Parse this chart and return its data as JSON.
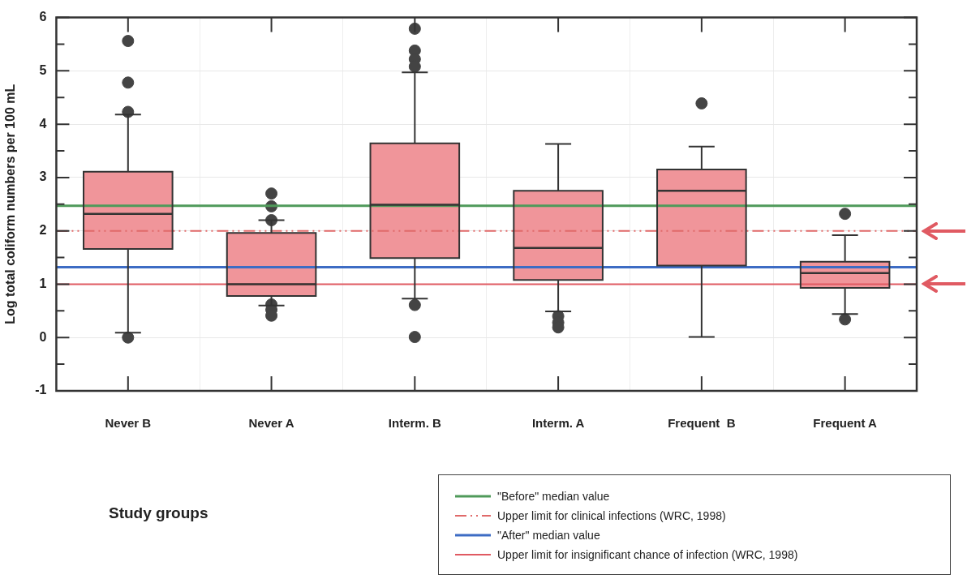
{
  "chart_data": {
    "type": "box",
    "annotations": [
      "Study groups"
    ],
    "ylabel": "Log total coliform numbers per 100 mL",
    "categories": [
      "Never B",
      "Never A",
      "Interm. B",
      "Interm. A",
      "Frequent  B",
      "Frequent A"
    ],
    "color": "#f0959a",
    "boxes": [
      {
        "low": 0.09,
        "q1": 1.66,
        "median": 2.32,
        "q3": 3.11,
        "high": 4.18,
        "outliers": [
          5.56,
          4.78,
          4.23,
          0.0
        ]
      },
      {
        "low": 0.6,
        "q1": 0.78,
        "median": 1.0,
        "q3": 1.96,
        "high": 2.2,
        "outliers": [
          2.7,
          2.46,
          2.2,
          0.62,
          0.52,
          0.41
        ]
      },
      {
        "low": 0.73,
        "q1": 1.49,
        "median": 2.49,
        "q3": 3.64,
        "high": 4.97,
        "outliers": [
          5.79,
          5.38,
          5.22,
          5.08,
          0.61,
          0.01
        ]
      },
      {
        "low": 0.49,
        "q1": 1.08,
        "median": 1.68,
        "q3": 2.75,
        "high": 3.63,
        "outliers": [
          0.4,
          0.28,
          0.19
        ]
      },
      {
        "low": 0.01,
        "q1": 1.35,
        "median": 2.75,
        "q3": 3.15,
        "high": 3.58,
        "outliers": [
          4.39
        ]
      },
      {
        "low": 0.44,
        "q1": 0.93,
        "median": 1.21,
        "q3": 1.42,
        "high": 1.92,
        "outliers": [
          2.32,
          0.34
        ]
      }
    ],
    "ylim": [
      -1,
      6
    ],
    "yticks": [
      -1,
      0,
      1,
      2,
      3,
      4,
      5,
      6
    ],
    "ref_lines": [
      {
        "axis": "y",
        "value": 2.47,
        "label": "\"Before\" median value",
        "color": "#4f9a5a",
        "line_style": "solid"
      },
      {
        "axis": "y",
        "value": 2.0,
        "label": "Upper limit for clinical infections (WRC, 1998)",
        "color": "#e06a6a",
        "line_style": "dashed"
      },
      {
        "axis": "y",
        "value": 1.32,
        "label": "\"After\" median value",
        "color": "#3d6cc4",
        "line_style": "solid"
      },
      {
        "axis": "y",
        "value": 1.0,
        "label": "Upper limit for insignificant chance of infection (WRC, 1998)",
        "color": "#e05a62",
        "line_style": "solid"
      }
    ],
    "grid": true,
    "legend": "bottom right",
    "marker": "circle"
  }
}
